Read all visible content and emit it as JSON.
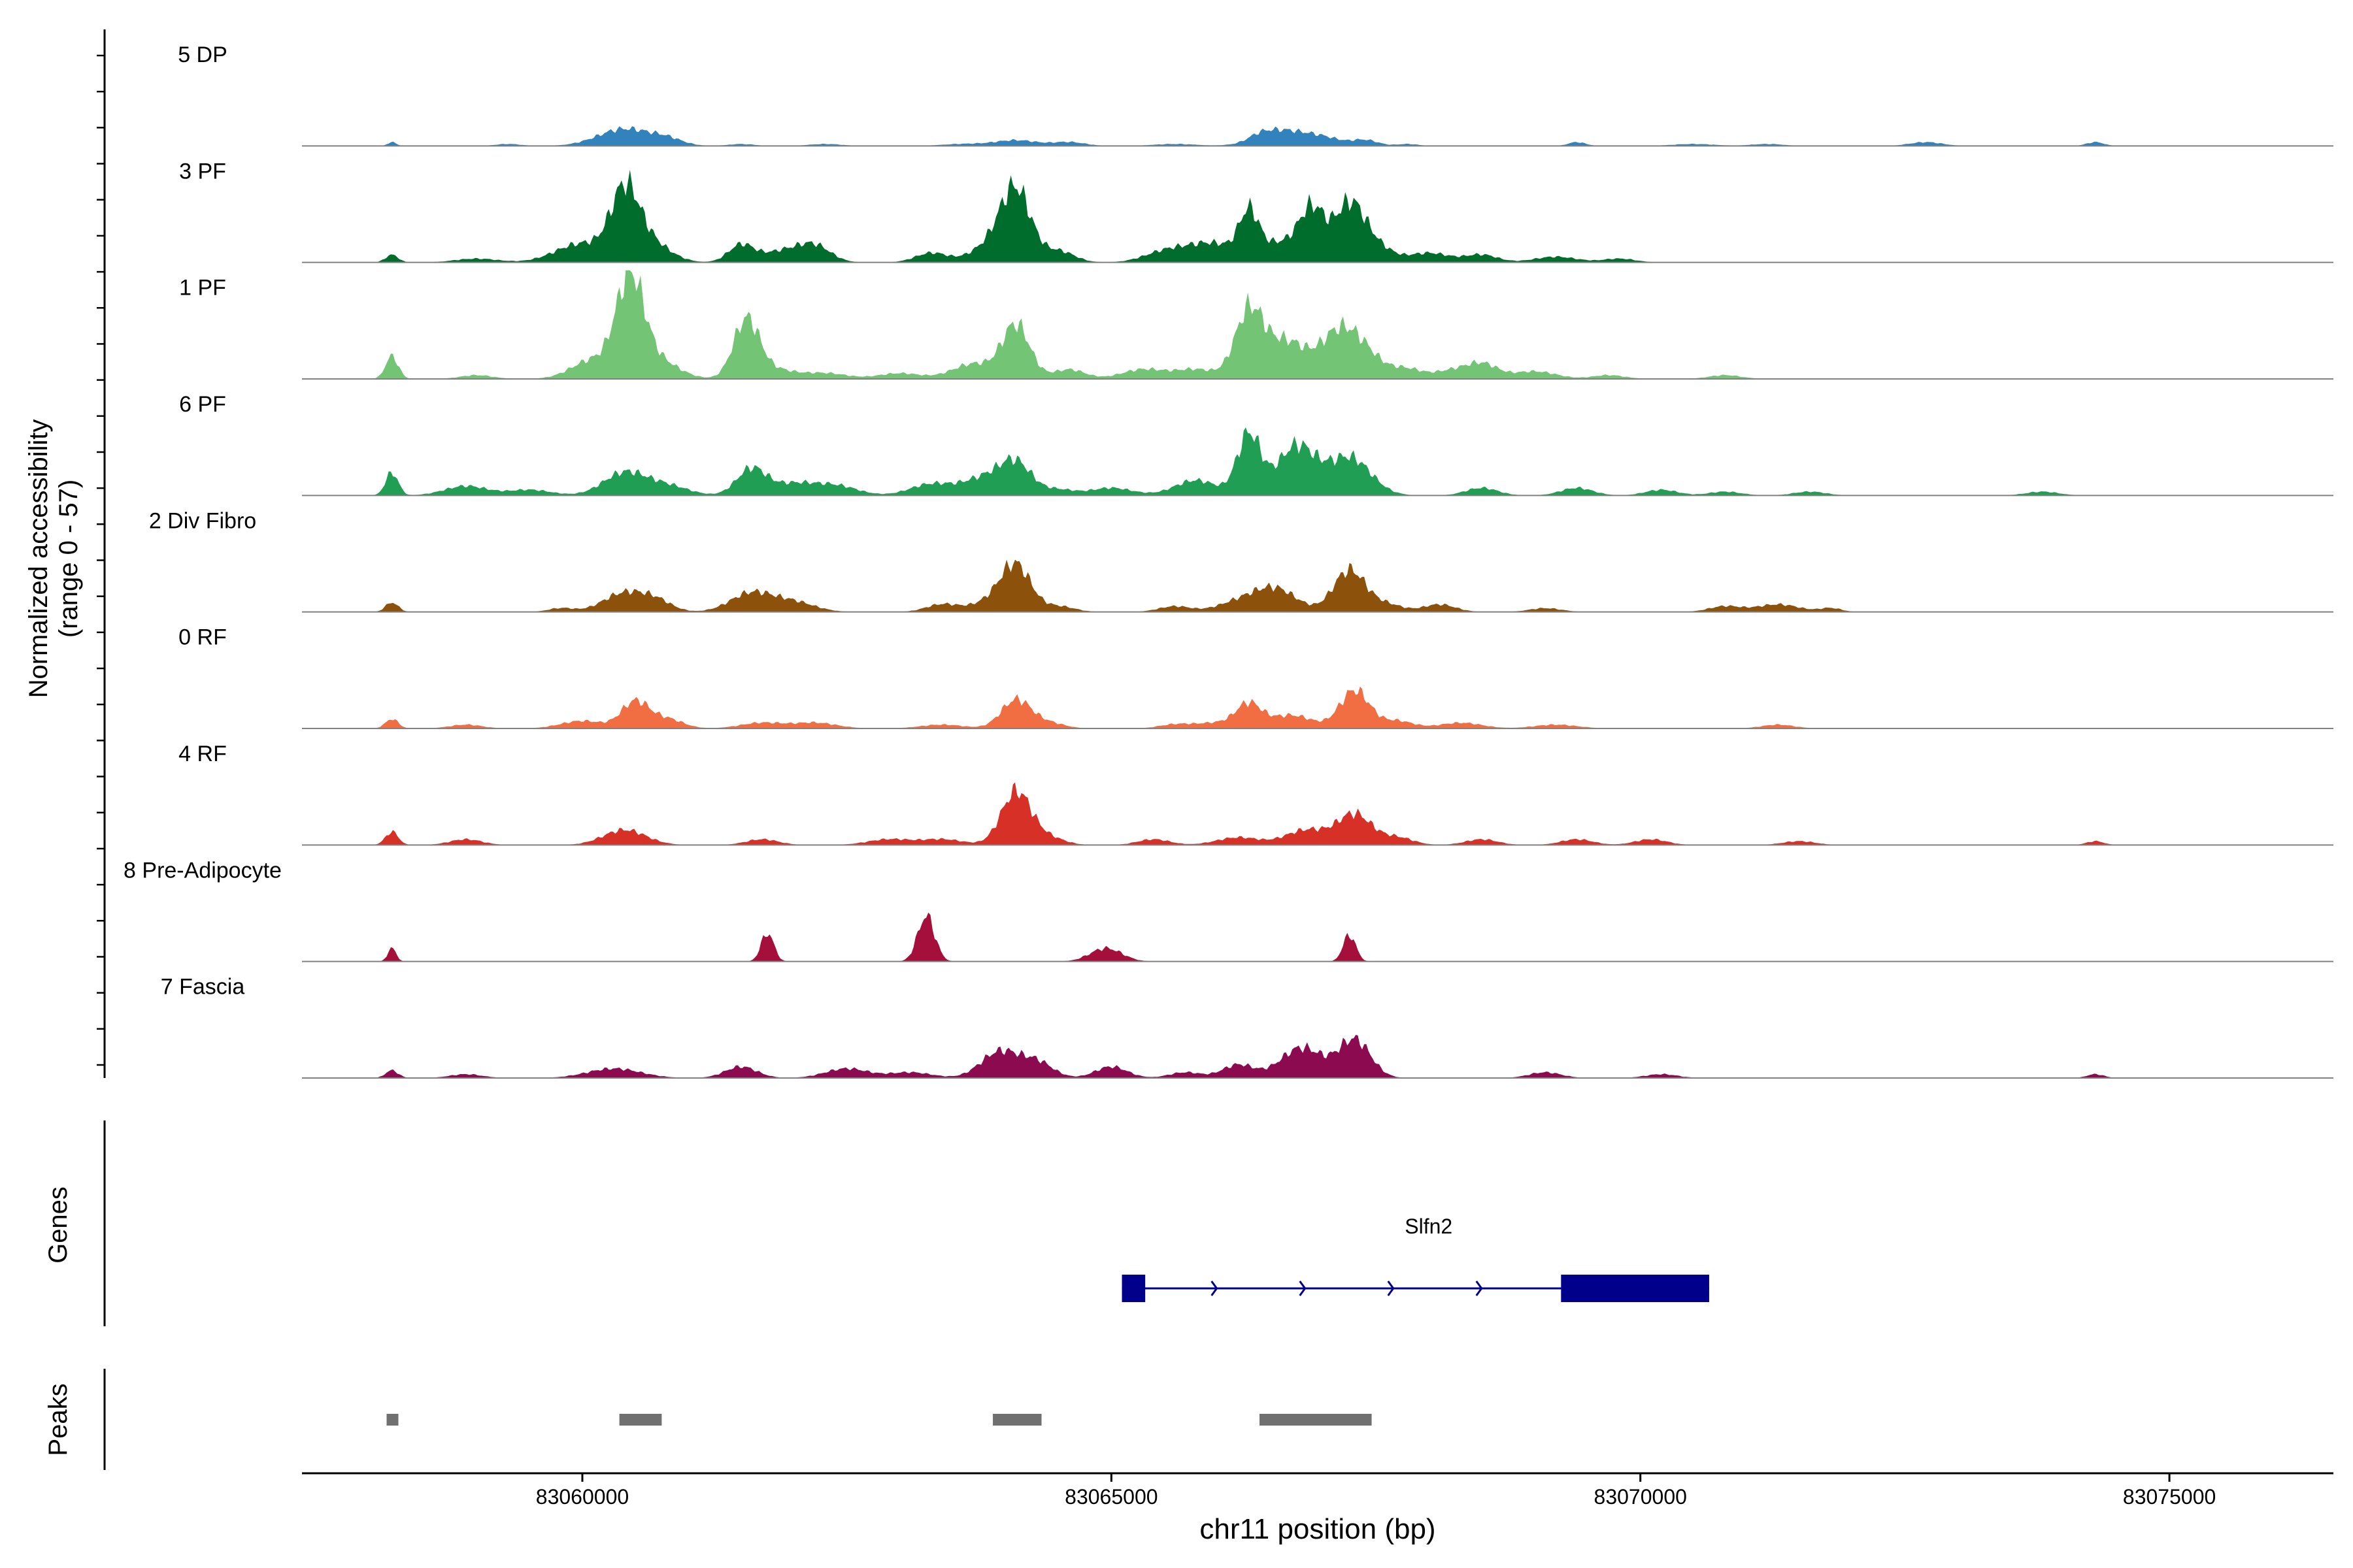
{
  "chart_data": {
    "type": "area",
    "title": "",
    "xlabel": "chr11 position (bp)",
    "ylabel": "Normalized accessibility\n(range 0 - 57)",
    "ylabel_lines": [
      "Normalized accessibility",
      "(range 0 - 57)"
    ],
    "y_range": [
      0,
      57
    ],
    "x_range": [
      83057350,
      83076550
    ],
    "x_ticks": [
      83060000,
      83065000,
      83070000,
      83075000
    ],
    "x_tick_labels": [
      "83060000",
      "83065000",
      "83070000",
      "83075000"
    ],
    "grid": false,
    "legend": "none",
    "series": [
      {
        "name": "5 DP",
        "color": "#3182bd",
        "peaks": [
          [
            83058200,
            2,
            40
          ],
          [
            83059300,
            1,
            120
          ],
          [
            83060400,
            9,
            250
          ],
          [
            83060800,
            3,
            150
          ],
          [
            83061500,
            1,
            120
          ],
          [
            83062300,
            1,
            150
          ],
          [
            83063600,
            1,
            200
          ],
          [
            83064100,
            3,
            200
          ],
          [
            83064600,
            2,
            150
          ],
          [
            83065600,
            1,
            200
          ],
          [
            83066400,
            2,
            100
          ],
          [
            83066600,
            8,
            220
          ],
          [
            83067000,
            4,
            180
          ],
          [
            83067400,
            3,
            120
          ],
          [
            83067800,
            1,
            100
          ],
          [
            83069400,
            2,
            80
          ],
          [
            83070500,
            1,
            200
          ],
          [
            83071200,
            1,
            150
          ],
          [
            83072700,
            2,
            150
          ],
          [
            83074300,
            2,
            80
          ]
        ]
      },
      {
        "name": "3 PF",
        "color": "#006d2c",
        "peaks": [
          [
            83058200,
            4,
            60
          ],
          [
            83059000,
            2,
            200
          ],
          [
            83060000,
            10,
            250
          ],
          [
            83060400,
            32,
            130
          ],
          [
            83060600,
            12,
            200
          ],
          [
            83061500,
            9,
            120
          ],
          [
            83061900,
            6,
            200
          ],
          [
            83062200,
            8,
            150
          ],
          [
            83063300,
            5,
            150
          ],
          [
            83063900,
            10,
            200
          ],
          [
            83064100,
            34,
            140
          ],
          [
            83064500,
            6,
            150
          ],
          [
            83065500,
            5,
            200
          ],
          [
            83065950,
            10,
            250
          ],
          [
            83066300,
            22,
            90
          ],
          [
            83066600,
            10,
            200
          ],
          [
            83066900,
            26,
            120
          ],
          [
            83067250,
            30,
            140
          ],
          [
            83067500,
            8,
            150
          ],
          [
            83068000,
            5,
            200
          ],
          [
            83068500,
            4,
            150
          ],
          [
            83069200,
            3,
            200
          ],
          [
            83069800,
            2,
            150
          ]
        ]
      },
      {
        "name": "1 PF",
        "color": "#74c476",
        "peaks": [
          [
            83058200,
            12,
            60
          ],
          [
            83059000,
            2,
            150
          ],
          [
            83060100,
            10,
            200
          ],
          [
            83060450,
            50,
            130
          ],
          [
            83060700,
            10,
            200
          ],
          [
            83061550,
            30,
            120
          ],
          [
            83061800,
            5,
            200
          ],
          [
            83062300,
            3,
            200
          ],
          [
            83063000,
            3,
            200
          ],
          [
            83063700,
            8,
            200
          ],
          [
            83064100,
            28,
            130
          ],
          [
            83064600,
            5,
            150
          ],
          [
            83065300,
            5,
            200
          ],
          [
            83065800,
            5,
            200
          ],
          [
            83066300,
            34,
            130
          ],
          [
            83066650,
            20,
            200
          ],
          [
            83067100,
            12,
            150
          ],
          [
            83067300,
            20,
            200
          ],
          [
            83067800,
            5,
            150
          ],
          [
            83068200,
            4,
            150
          ],
          [
            83068500,
            8,
            150
          ],
          [
            83069000,
            4,
            200
          ],
          [
            83069700,
            2,
            150
          ],
          [
            83070800,
            2,
            150
          ]
        ]
      },
      {
        "name": "6 PF",
        "color": "#1f9e54",
        "peaks": [
          [
            83058200,
            12,
            60
          ],
          [
            83058900,
            5,
            200
          ],
          [
            83059500,
            3,
            200
          ],
          [
            83060400,
            12,
            200
          ],
          [
            83060800,
            5,
            200
          ],
          [
            83061600,
            14,
            140
          ],
          [
            83062000,
            6,
            200
          ],
          [
            83062400,
            5,
            200
          ],
          [
            83063300,
            6,
            200
          ],
          [
            83063800,
            9,
            200
          ],
          [
            83064100,
            16,
            150
          ],
          [
            83064500,
            3,
            150
          ],
          [
            83065000,
            4,
            200
          ],
          [
            83065800,
            8,
            200
          ],
          [
            83066300,
            32,
            110
          ],
          [
            83066750,
            26,
            180
          ],
          [
            83067250,
            20,
            200
          ],
          [
            83068500,
            4,
            150
          ],
          [
            83069400,
            4,
            150
          ],
          [
            83070200,
            3,
            150
          ],
          [
            83070800,
            2,
            150
          ],
          [
            83071600,
            2,
            150
          ],
          [
            83073800,
            2,
            150
          ]
        ]
      },
      {
        "name": "2 Div Fibro",
        "color": "#8c510a",
        "peaks": [
          [
            83058200,
            5,
            60
          ],
          [
            83059800,
            2,
            120
          ],
          [
            83060400,
            10,
            200
          ],
          [
            83060700,
            5,
            150
          ],
          [
            83061600,
            10,
            200
          ],
          [
            83062000,
            5,
            200
          ],
          [
            83063400,
            4,
            150
          ],
          [
            83063900,
            6,
            200
          ],
          [
            83064100,
            22,
            140
          ],
          [
            83064500,
            3,
            150
          ],
          [
            83065600,
            3,
            150
          ],
          [
            83066200,
            5,
            200
          ],
          [
            83066550,
            12,
            200
          ],
          [
            83067250,
            22,
            150
          ],
          [
            83067600,
            4,
            150
          ],
          [
            83068100,
            4,
            150
          ],
          [
            83069100,
            2,
            150
          ],
          [
            83070800,
            3,
            150
          ],
          [
            83071300,
            4,
            200
          ],
          [
            83071800,
            2,
            100
          ]
        ]
      },
      {
        "name": "0 RF",
        "color": "#f16d42",
        "peaks": [
          [
            83058200,
            5,
            60
          ],
          [
            83058900,
            2,
            150
          ],
          [
            83060000,
            4,
            200
          ],
          [
            83060500,
            14,
            130
          ],
          [
            83060800,
            5,
            150
          ],
          [
            83061700,
            3,
            200
          ],
          [
            83062200,
            3,
            200
          ],
          [
            83063400,
            2,
            200
          ],
          [
            83064100,
            15,
            140
          ],
          [
            83064400,
            3,
            150
          ],
          [
            83065600,
            2,
            150
          ],
          [
            83066000,
            3,
            200
          ],
          [
            83066300,
            12,
            120
          ],
          [
            83066700,
            7,
            200
          ],
          [
            83067300,
            20,
            140
          ],
          [
            83067700,
            4,
            150
          ],
          [
            83068300,
            3,
            200
          ],
          [
            83069200,
            2,
            200
          ],
          [
            83071300,
            2,
            150
          ]
        ]
      },
      {
        "name": "4 RF",
        "color": "#d73027",
        "peaks": [
          [
            83058200,
            7,
            60
          ],
          [
            83058900,
            3,
            150
          ],
          [
            83060400,
            8,
            200
          ],
          [
            83061700,
            3,
            150
          ],
          [
            83062900,
            3,
            200
          ],
          [
            83063400,
            3,
            200
          ],
          [
            83064100,
            28,
            140
          ],
          [
            83064400,
            4,
            150
          ],
          [
            83065400,
            3,
            150
          ],
          [
            83066200,
            4,
            200
          ],
          [
            83066850,
            8,
            200
          ],
          [
            83067300,
            16,
            160
          ],
          [
            83067700,
            4,
            150
          ],
          [
            83068500,
            3,
            150
          ],
          [
            83069400,
            3,
            150
          ],
          [
            83070100,
            3,
            150
          ],
          [
            83071500,
            2,
            150
          ],
          [
            83074300,
            2,
            80
          ]
        ]
      },
      {
        "name": "8 Pre-Adipocyte",
        "color": "#a50f3b",
        "peaks": [
          [
            83058200,
            7,
            40
          ],
          [
            83061750,
            15,
            60
          ],
          [
            83063250,
            24,
            80
          ],
          [
            83064950,
            7,
            150
          ],
          [
            83067250,
            14,
            60
          ]
        ]
      },
      {
        "name": "7 Fascia",
        "color": "#8c0a50",
        "peaks": [
          [
            83058200,
            4,
            60
          ],
          [
            83058900,
            2,
            150
          ],
          [
            83060300,
            5,
            250
          ],
          [
            83061500,
            6,
            150
          ],
          [
            83062500,
            5,
            200
          ],
          [
            83063100,
            3,
            200
          ],
          [
            83063950,
            14,
            180
          ],
          [
            83064300,
            8,
            150
          ],
          [
            83065000,
            6,
            150
          ],
          [
            83065700,
            3,
            150
          ],
          [
            83066200,
            7,
            150
          ],
          [
            83066800,
            16,
            200
          ],
          [
            83067300,
            20,
            150
          ],
          [
            83069100,
            3,
            150
          ],
          [
            83070200,
            2,
            150
          ],
          [
            83074300,
            2,
            80
          ]
        ]
      }
    ],
    "genes": {
      "label": "Genes",
      "items": [
        {
          "name": "Slfn2",
          "color": "#00008b",
          "strand": "+",
          "start": 83065100,
          "end": 83070650,
          "exons": [
            [
              83065100,
              83065320
            ],
            [
              83069250,
              83070650
            ]
          ]
        }
      ]
    },
    "peaks_track": {
      "label": "Peaks",
      "color": "#707070",
      "regions": [
        [
          83058150,
          83058250
        ],
        [
          83060350,
          83060750
        ],
        [
          83063880,
          83064340
        ],
        [
          83066400,
          83067460
        ]
      ]
    }
  }
}
